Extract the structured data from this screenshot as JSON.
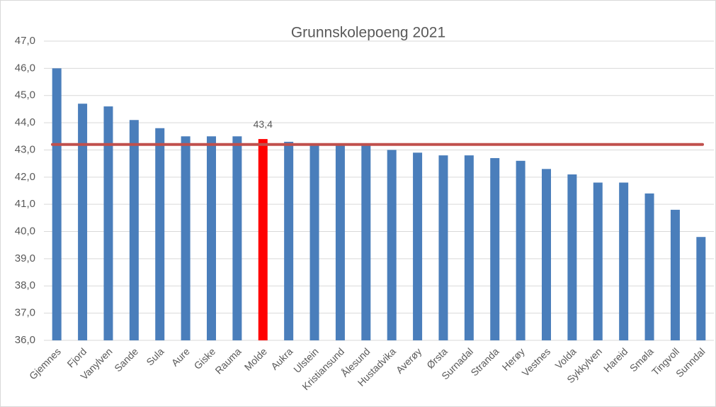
{
  "chart_data": {
    "type": "bar",
    "title": "Grunnskolepoeng 2021",
    "categories": [
      "Gjemnes",
      "Fjord",
      "Vanylven",
      "Sande",
      "Sula",
      "Aure",
      "Giske",
      "Rauma",
      "Molde",
      "Aukra",
      "Ulstein",
      "Kristiansund",
      "Ålesund",
      "Hustadvika",
      "Averøy",
      "Ørsta",
      "Surnadal",
      "Stranda",
      "Herøy",
      "Vestnes",
      "Volda",
      "Sykkylven",
      "Hareid",
      "Smøla",
      "Tingvoll",
      "Sunndal"
    ],
    "values": [
      46.0,
      44.7,
      44.6,
      44.1,
      43.8,
      43.5,
      43.5,
      43.5,
      43.4,
      43.3,
      43.2,
      43.2,
      43.2,
      43.0,
      42.9,
      42.8,
      42.8,
      42.7,
      42.6,
      42.3,
      42.1,
      41.8,
      41.8,
      41.4,
      40.8,
      39.8
    ],
    "value_labels": [
      null,
      null,
      null,
      null,
      null,
      null,
      null,
      null,
      "43,4",
      null,
      null,
      null,
      null,
      null,
      null,
      null,
      null,
      null,
      null,
      null,
      null,
      null,
      null,
      null,
      null,
      null
    ],
    "colors": [
      "#4a7ebb",
      "#4a7ebb",
      "#4a7ebb",
      "#4a7ebb",
      "#4a7ebb",
      "#4a7ebb",
      "#4a7ebb",
      "#4a7ebb",
      "#ff0000",
      "#4a7ebb",
      "#4a7ebb",
      "#4a7ebb",
      "#4a7ebb",
      "#4a7ebb",
      "#4a7ebb",
      "#4a7ebb",
      "#4a7ebb",
      "#4a7ebb",
      "#4a7ebb",
      "#4a7ebb",
      "#4a7ebb",
      "#4a7ebb",
      "#4a7ebb",
      "#4a7ebb",
      "#4a7ebb",
      "#4a7ebb"
    ],
    "reference_line": {
      "value": 43.2,
      "color": "#c0504d"
    },
    "ylim": [
      36,
      47
    ],
    "yticks": [
      {
        "value": 36,
        "label": "36,0"
      },
      {
        "value": 37,
        "label": "37,0"
      },
      {
        "value": 38,
        "label": "38,0"
      },
      {
        "value": 39,
        "label": "39,0"
      },
      {
        "value": 40,
        "label": "40,0"
      },
      {
        "value": 41,
        "label": "41,0"
      },
      {
        "value": 42,
        "label": "42,0"
      },
      {
        "value": 43,
        "label": "43,0"
      },
      {
        "value": 44,
        "label": "44,0"
      },
      {
        "value": 45,
        "label": "45,0"
      },
      {
        "value": 46,
        "label": "46,0"
      },
      {
        "value": 47,
        "label": "47,0"
      }
    ],
    "grid": true
  }
}
